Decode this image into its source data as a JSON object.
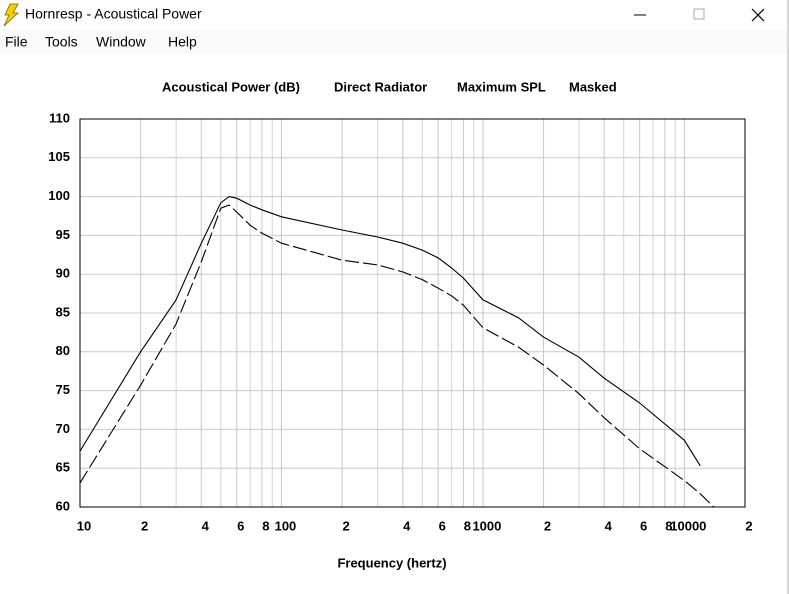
{
  "window": {
    "title": "Hornresp - Acoustical Power"
  },
  "menu": [
    "File",
    "Tools",
    "Window",
    "Help"
  ],
  "chart_data": {
    "type": "line",
    "title": [
      "Acoustical Power (dB)",
      "Direct Radiator",
      "Maximum SPL",
      "Masked"
    ],
    "x_label": "Frequency (hertz)",
    "log_x": true,
    "grid": true,
    "xlim": [
      10,
      20000
    ],
    "ylim": [
      60,
      110
    ],
    "yticks": [
      60,
      65,
      70,
      75,
      80,
      85,
      90,
      95,
      100,
      105,
      110
    ],
    "xticks": [
      10,
      {
        "value": 20,
        "label": "2"
      },
      {
        "value": 40,
        "label": "4"
      },
      {
        "value": 60,
        "label": "6"
      },
      {
        "value": 80,
        "label": "8"
      },
      100,
      {
        "value": 200,
        "label": "2"
      },
      {
        "value": 400,
        "label": "4"
      },
      {
        "value": 600,
        "label": "6"
      },
      {
        "value": 800,
        "label": "8"
      },
      1000,
      {
        "value": 2000,
        "label": "2"
      },
      {
        "value": 4000,
        "label": "4"
      },
      {
        "value": 6000,
        "label": "6"
      },
      {
        "value": 8000,
        "label": "8"
      },
      10000,
      {
        "value": 20000,
        "label": "2"
      }
    ],
    "x_minor_grid": [
      30,
      50,
      70,
      90,
      300,
      500,
      700,
      900,
      3000,
      5000,
      7000,
      9000
    ],
    "x": [
      10,
      20,
      30,
      40,
      50,
      55,
      60,
      70,
      80,
      100,
      200,
      300,
      400,
      500,
      600,
      700,
      800,
      1000,
      1500,
      2000,
      3000,
      4000,
      6000,
      10000,
      12000,
      14000
    ],
    "series": [
      {
        "color": "#000000",
        "dashed": false,
        "values": [
          67.2,
          80.0,
          86.7,
          94.0,
          99.2,
          100.0,
          99.8,
          98.9,
          98.3,
          97.4,
          95.7,
          94.8,
          94.0,
          93.1,
          92.1,
          90.8,
          89.5,
          86.7,
          84.4,
          81.9,
          79.3,
          76.6,
          73.4,
          68.6,
          65.3,
          null
        ]
      },
      {
        "color": "#000000",
        "dashed": true,
        "values": [
          63.1,
          75.7,
          83.6,
          91.6,
          98.5,
          98.9,
          98.0,
          96.3,
          95.3,
          94.0,
          91.8,
          91.2,
          90.3,
          89.3,
          88.2,
          87.2,
          86.0,
          83.1,
          80.6,
          78.3,
          74.6,
          71.5,
          67.5,
          63.4,
          61.7,
          60.0
        ]
      }
    ]
  }
}
